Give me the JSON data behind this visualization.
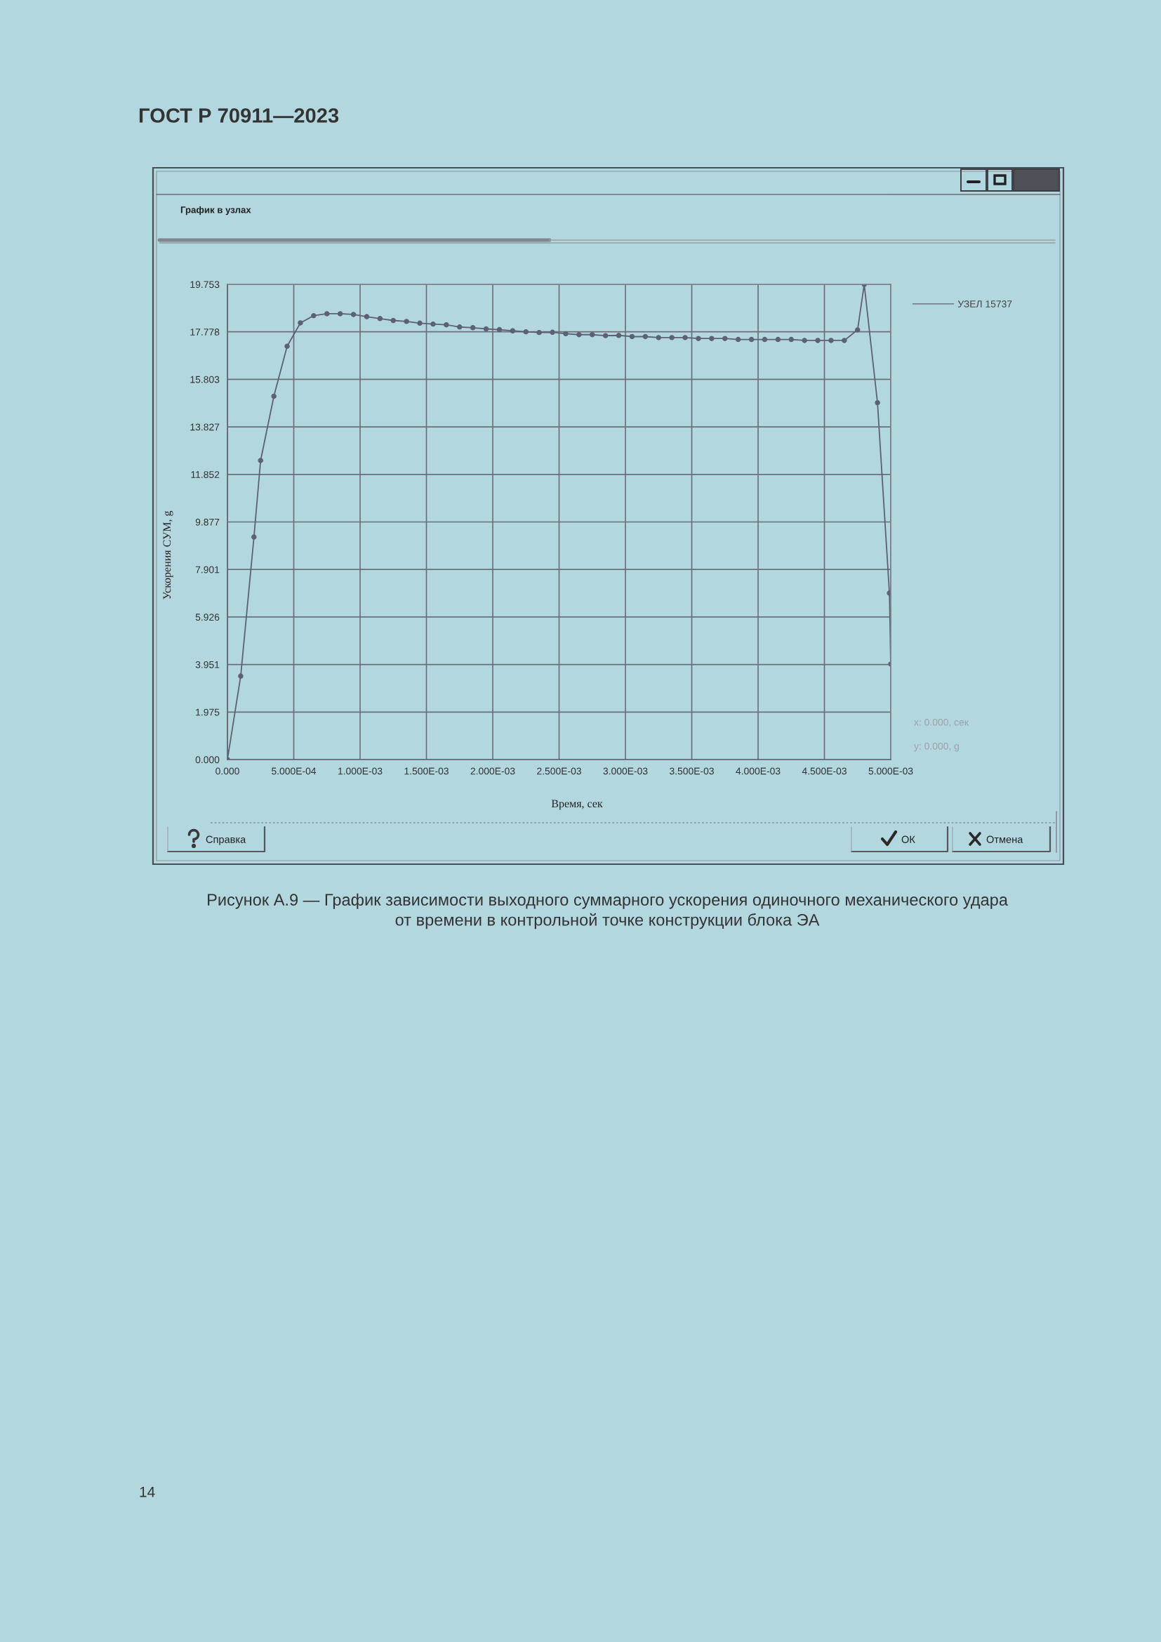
{
  "chart_data": {
    "type": "line",
    "title": "Рисунок А.9 — График зависимости выходного суммарного ускорения одиночного механического удара\nот времени в контрольной точке конструкции блока ЭА",
    "xlabel": "Время, сек",
    "ylabel": "Ускорения СУМ, g",
    "x": [
      0,
      0.0001,
      0.0002,
      0.00025,
      0.00035,
      0.00045,
      0.00055,
      0.00065,
      0.00075,
      0.00085,
      0.00095,
      0.00105,
      0.00115,
      0.00125,
      0.00135,
      0.00145,
      0.00155,
      0.00165,
      0.00175,
      0.00185,
      0.00195,
      0.00205,
      0.00215,
      0.00225,
      0.00235,
      0.00245,
      0.00255,
      0.00265,
      0.00275,
      0.00285,
      0.00295,
      0.00305,
      0.00315,
      0.00325,
      0.00335,
      0.00345,
      0.00355,
      0.00365,
      0.00375,
      0.00385,
      0.00395,
      0.00405,
      0.00415,
      0.00425,
      0.00435,
      0.00445,
      0.00455,
      0.00465,
      0.00475,
      0.0048,
      0.0049,
      0.00499,
      0.005
    ],
    "series": [
      {
        "name": "УЗЕЛ 15737",
        "color": "#5b6275",
        "values": [
          0,
          3.47,
          9.25,
          12.43,
          15.1,
          17.18,
          18.15,
          18.45,
          18.53,
          18.53,
          18.5,
          18.41,
          18.33,
          18.25,
          18.21,
          18.14,
          18.1,
          18.07,
          17.98,
          17.95,
          17.9,
          17.87,
          17.82,
          17.78,
          17.75,
          17.76,
          17.7,
          17.66,
          17.66,
          17.62,
          17.63,
          17.58,
          17.58,
          17.54,
          17.54,
          17.54,
          17.5,
          17.5,
          17.5,
          17.46,
          17.46,
          17.46,
          17.46,
          17.46,
          17.42,
          17.42,
          17.42,
          17.42,
          17.86,
          19.75,
          14.83,
          6.92,
          3.97
        ]
      }
    ],
    "xlim": [
      0,
      0.005
    ],
    "ylim": [
      0,
      19.753
    ],
    "xticks": [
      {
        "value": 0,
        "label": "0.000"
      },
      {
        "value": 0.0005,
        "label": "5.000E-04"
      },
      {
        "value": 0.001,
        "label": "1.000E-03"
      },
      {
        "value": 0.0015,
        "label": "1.500E-03"
      },
      {
        "value": 0.002,
        "label": "2.000E-03"
      },
      {
        "value": 0.0025,
        "label": "2.500E-03"
      },
      {
        "value": 0.003,
        "label": "3.000E-03"
      },
      {
        "value": 0.0035,
        "label": "3.500E-03"
      },
      {
        "value": 0.004,
        "label": "4.000E-03"
      },
      {
        "value": 0.0045,
        "label": "4.500E-03"
      },
      {
        "value": 0.005,
        "label": "5.000E-03"
      }
    ],
    "yticks": [
      {
        "value": 0,
        "label": "0.000"
      },
      1.975,
      3.951,
      5.926,
      7.901,
      9.877,
      11.852,
      13.827,
      15.803,
      17.778,
      19.753
    ],
    "grid": true,
    "legend": "top right",
    "marker": "circle",
    "line_style": "solid",
    "annotations": [
      "ГОСТ Р 70911—2023",
      "График в узлах",
      "x: 0.000, сек",
      "y: 0.000, g",
      "Справка",
      "ОК",
      "Отмена",
      "14"
    ]
  }
}
